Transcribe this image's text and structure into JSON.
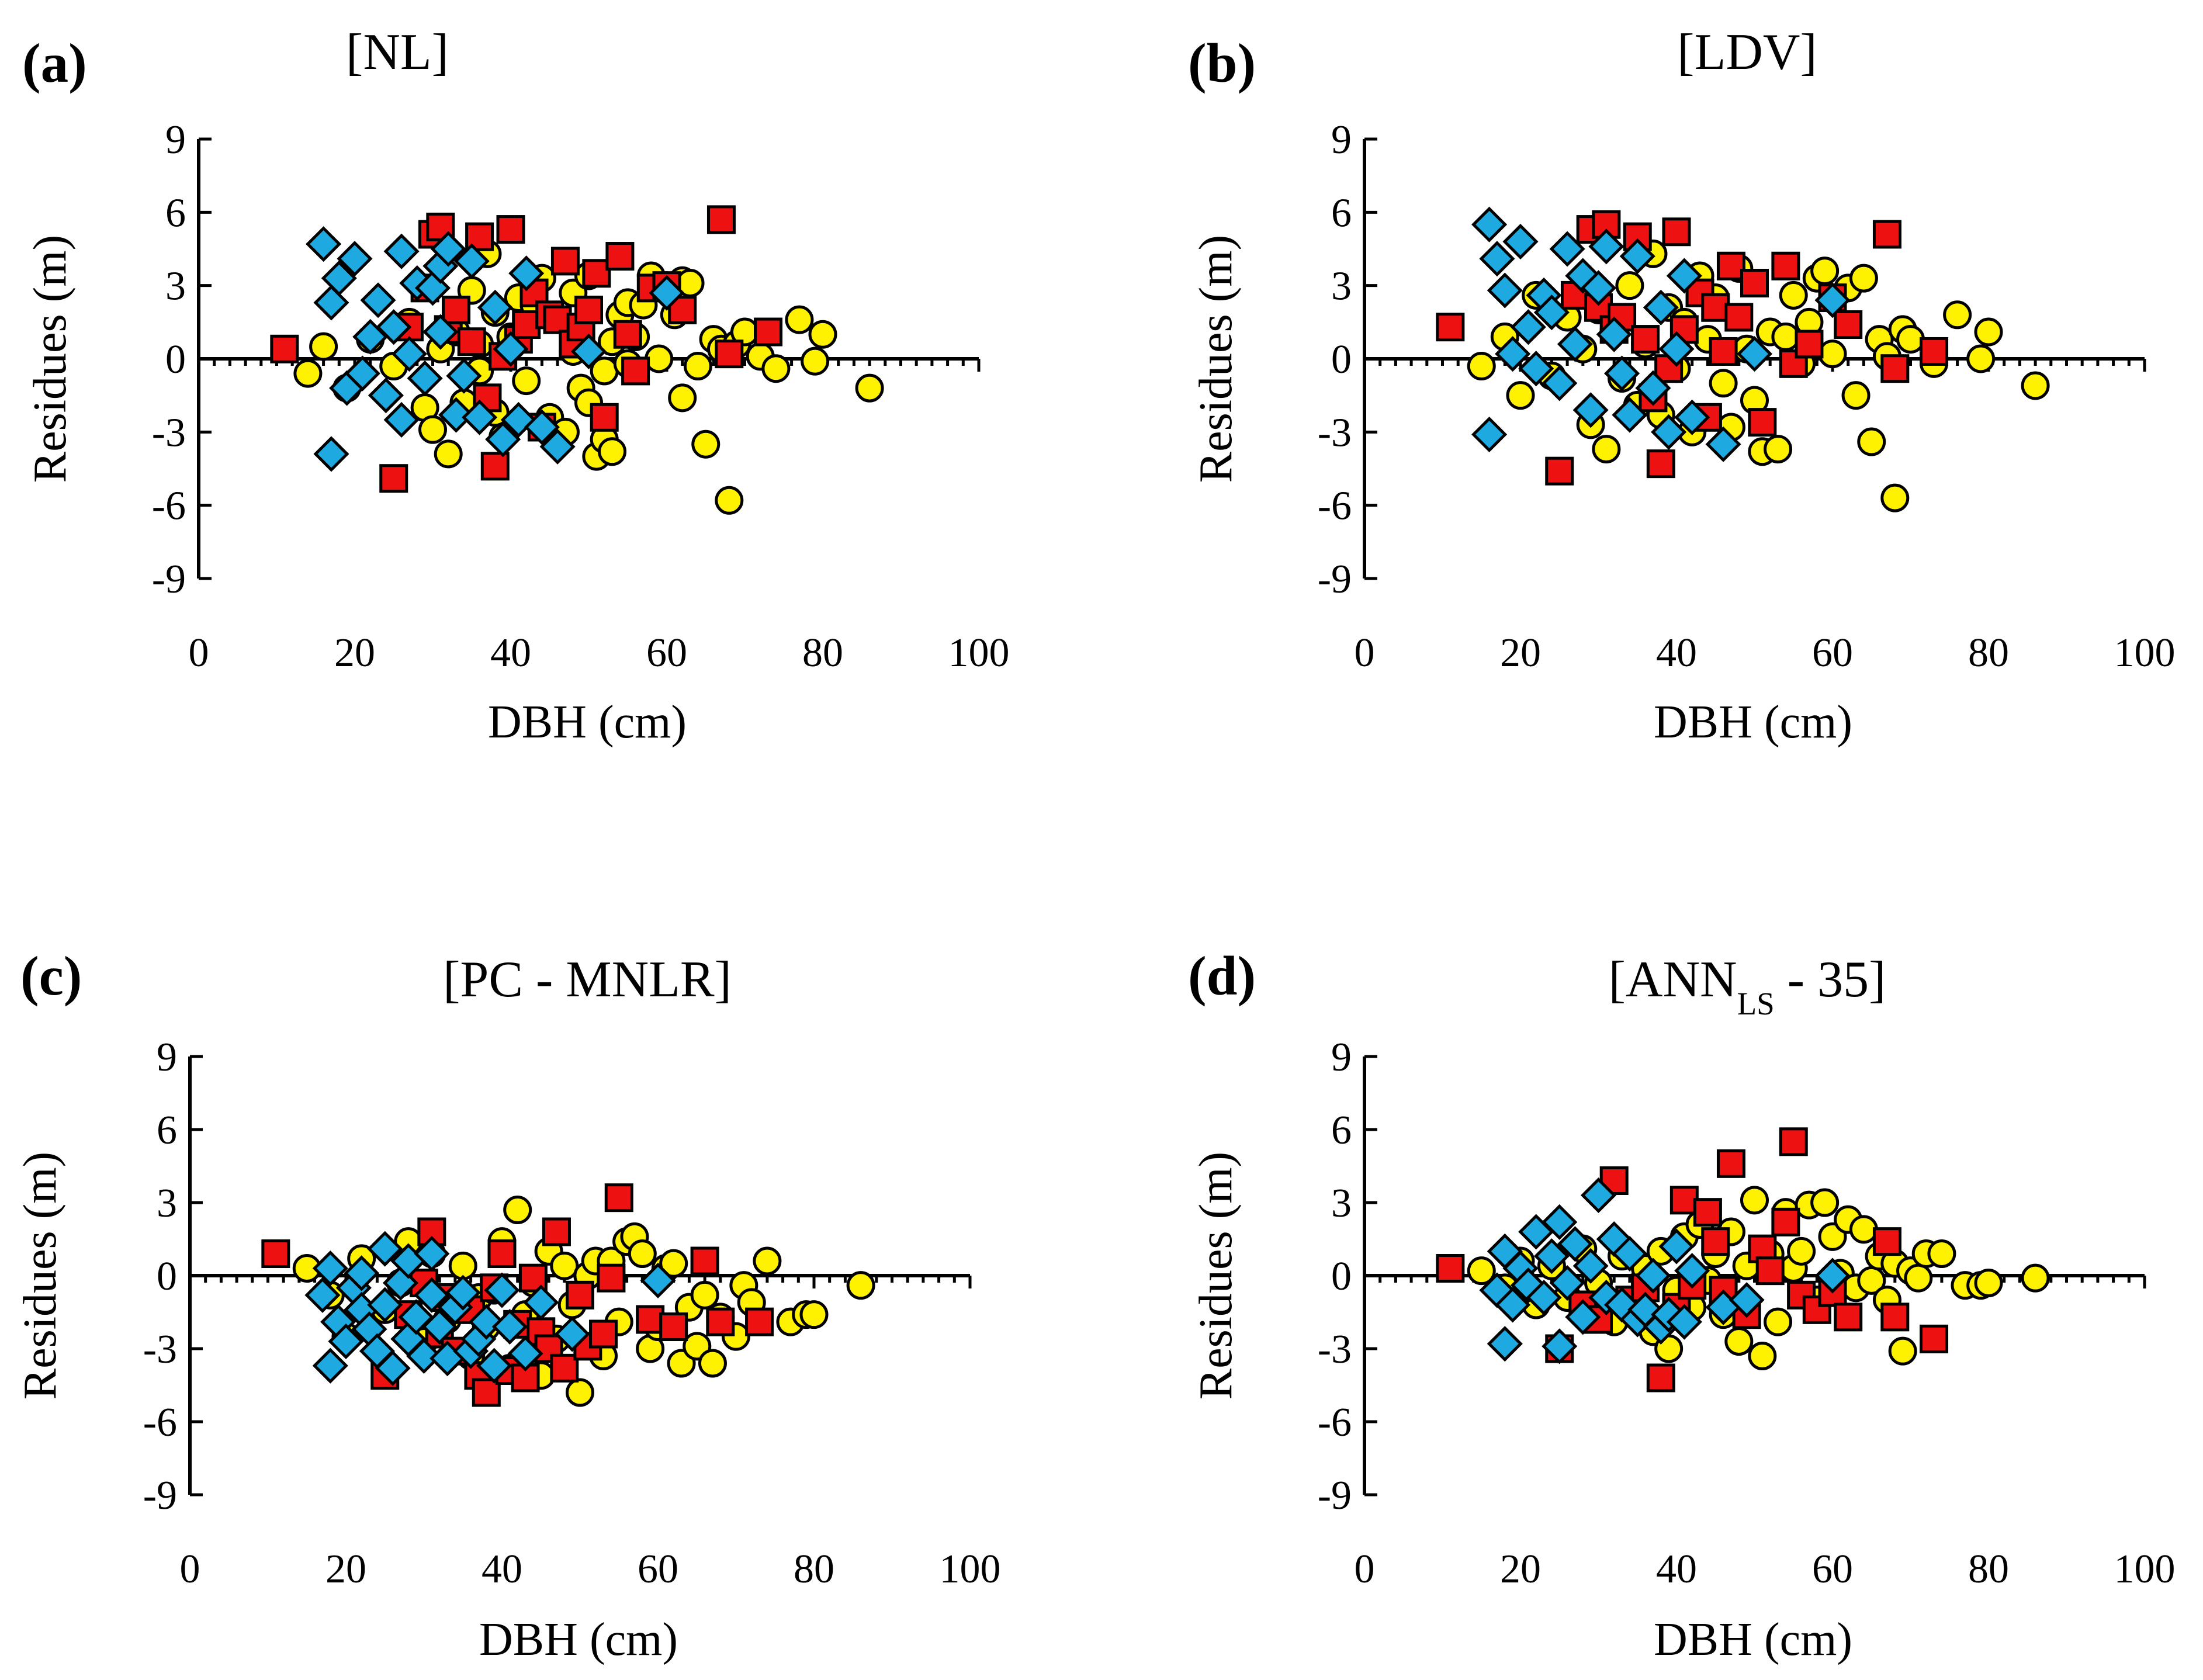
{
  "colors": {
    "series_circle": "#FFF200",
    "series_square": "#EE1111",
    "series_diamond": "#1EAAE0",
    "outline": "#000000"
  },
  "chart_data": [
    {
      "type": "scatter",
      "panel_label": "(a)",
      "title": "[NL]",
      "title_sub": "",
      "title_suffix": "",
      "xlabel": "DBH (cm)",
      "ylabel": "Residues (m)",
      "xlim": [
        0,
        100
      ],
      "ylim": [
        -9,
        9
      ],
      "xticks": [
        0,
        20,
        40,
        60,
        80,
        100
      ],
      "yticks": [
        9,
        6,
        3,
        0,
        -3,
        -6,
        -9
      ],
      "grid": false,
      "series": [
        {
          "name": "circle",
          "marker": "circle",
          "x": [
            14,
            16,
            19,
            22,
            25,
            27,
            29,
            30,
            31,
            32,
            33,
            34,
            35,
            36,
            36,
            37,
            38,
            38,
            39,
            40,
            41,
            42,
            43,
            44,
            45,
            46,
            47,
            48,
            48,
            49,
            50,
            50,
            51,
            52,
            52,
            53,
            53,
            54,
            55,
            55,
            56,
            57,
            58,
            59,
            60,
            61,
            62,
            62,
            63,
            64,
            65,
            66,
            67,
            68,
            69,
            70,
            72,
            74,
            77,
            79,
            80,
            86
          ],
          "y": [
            -0.6,
            0.5,
            -1.2,
            0.8,
            -0.3,
            1.5,
            -2.0,
            -2.9,
            0.4,
            -3.9,
            1.1,
            -1.8,
            2.8,
            0.6,
            -0.5,
            4.3,
            1.9,
            -2.2,
            -3.2,
            0.9,
            2.5,
            -0.9,
            2.2,
            3.3,
            -2.4,
            1.6,
            -3.0,
            0.3,
            2.7,
            -1.2,
            -1.8,
            3.4,
            -4.0,
            -0.5,
            -3.3,
            0.7,
            -3.8,
            1.8,
            2.3,
            -0.2,
            0.9,
            2.2,
            3.4,
            0.0,
            3.0,
            1.8,
            3.2,
            -1.6,
            3.1,
            -0.3,
            -3.5,
            0.8,
            0.4,
            -5.8,
            0.6,
            1.1,
            0.1,
            -0.4,
            1.6,
            -0.1,
            1.0,
            -1.2
          ]
        },
        {
          "name": "square",
          "marker": "square",
          "x": [
            11,
            25,
            27,
            29,
            30,
            31,
            32,
            33,
            35,
            36,
            37,
            38,
            39,
            40,
            41,
            42,
            43,
            44,
            45,
            46,
            47,
            48,
            49,
            50,
            51,
            52,
            54,
            55,
            56,
            58,
            60,
            62,
            67,
            68,
            73
          ],
          "y": [
            0.4,
            -4.9,
            1.3,
            2.9,
            5.1,
            5.4,
            1.2,
            2.0,
            0.7,
            5.0,
            -1.6,
            -4.4,
            0.1,
            5.3,
            0.8,
            1.4,
            2.7,
            -2.8,
            1.8,
            1.6,
            4.0,
            0.6,
            1.3,
            2.0,
            3.5,
            -2.4,
            4.2,
            1.0,
            -0.5,
            2.9,
            3.0,
            2.0,
            5.7,
            0.2,
            1.1
          ]
        },
        {
          "name": "diamond",
          "marker": "diamond",
          "x": [
            16,
            17,
            17,
            18,
            19,
            20,
            21,
            22,
            23,
            24,
            25,
            26,
            26,
            27,
            28,
            29,
            30,
            31,
            31,
            32,
            33,
            34,
            35,
            36,
            38,
            39,
            40,
            41,
            42,
            44,
            46,
            50,
            60
          ],
          "y": [
            4.7,
            -3.9,
            2.3,
            3.3,
            -1.2,
            4.1,
            -0.6,
            0.9,
            2.4,
            -1.5,
            1.3,
            4.4,
            -2.5,
            0.2,
            3.1,
            -0.8,
            2.9,
            1.1,
            3.8,
            4.5,
            -2.3,
            -0.7,
            4.0,
            -2.4,
            2.1,
            -3.3,
            0.4,
            -2.5,
            3.5,
            -2.8,
            -3.6,
            0.3,
            2.7
          ]
        }
      ]
    },
    {
      "type": "scatter",
      "panel_label": "(b)",
      "title": "[LDV]",
      "title_sub": "",
      "title_suffix": "",
      "xlabel": "DBH (cm)",
      "ylabel": "Residues (m)",
      "xlim": [
        0,
        100
      ],
      "ylim": [
        -9,
        9
      ],
      "xticks": [
        0,
        20,
        40,
        60,
        80,
        100
      ],
      "yticks": [
        9,
        6,
        3,
        0,
        -3,
        -6,
        -9
      ],
      "grid": false,
      "series": [
        {
          "name": "circle",
          "marker": "circle",
          "x": [
            15,
            18,
            20,
            22,
            24,
            26,
            28,
            29,
            30,
            31,
            32,
            33,
            34,
            35,
            36,
            37,
            38,
            39,
            40,
            41,
            42,
            43,
            44,
            45,
            46,
            47,
            48,
            49,
            50,
            51,
            52,
            53,
            54,
            55,
            56,
            57,
            58,
            59,
            60,
            62,
            63,
            64,
            65,
            66,
            67,
            68,
            69,
            70,
            73,
            76,
            79,
            80,
            86
          ],
          "y": [
            -0.3,
            0.9,
            -1.5,
            2.6,
            -0.7,
            1.7,
            0.4,
            -2.7,
            2.0,
            -3.7,
            1.2,
            -0.8,
            3.0,
            -1.9,
            0.6,
            4.3,
            -2.3,
            2.1,
            -0.4,
            1.5,
            -3.0,
            3.4,
            0.8,
            2.5,
            -1.0,
            -2.8,
            3.7,
            0.4,
            -1.7,
            -3.8,
            1.1,
            -3.7,
            0.9,
            2.6,
            -0.2,
            1.5,
            3.3,
            3.6,
            0.2,
            2.9,
            -1.5,
            3.3,
            -3.4,
            0.8,
            0.1,
            -5.7,
            1.2,
            0.8,
            -0.2,
            1.8,
            0.0,
            1.1,
            -1.1
          ]
        },
        {
          "name": "square",
          "marker": "square",
          "x": [
            11,
            25,
            27,
            29,
            30,
            31,
            32,
            33,
            35,
            36,
            37,
            38,
            39,
            40,
            41,
            43,
            44,
            45,
            46,
            47,
            48,
            50,
            51,
            54,
            55,
            57,
            60,
            62,
            67,
            68,
            73
          ],
          "y": [
            1.3,
            -4.6,
            2.6,
            5.3,
            2.1,
            5.5,
            1.2,
            1.7,
            5.0,
            0.8,
            -1.6,
            -4.3,
            -0.4,
            5.2,
            1.2,
            2.7,
            -2.4,
            2.1,
            0.3,
            3.8,
            1.7,
            3.1,
            -2.6,
            3.8,
            -0.2,
            0.6,
            2.5,
            1.4,
            5.1,
            -0.4,
            0.3
          ]
        },
        {
          "name": "diamond",
          "marker": "diamond",
          "x": [
            16,
            16,
            17,
            18,
            19,
            20,
            21,
            22,
            23,
            24,
            25,
            26,
            27,
            28,
            29,
            30,
            31,
            32,
            33,
            34,
            35,
            37,
            38,
            39,
            40,
            41,
            42,
            46,
            50,
            60
          ],
          "y": [
            5.5,
            -3.1,
            4.1,
            2.8,
            0.2,
            4.8,
            1.3,
            -0.4,
            2.6,
            1.9,
            -1.0,
            4.5,
            0.6,
            3.4,
            -2.1,
            2.9,
            4.6,
            1.0,
            -0.6,
            -2.3,
            4.2,
            -1.2,
            2.1,
            -3.0,
            0.4,
            3.4,
            -2.4,
            -3.5,
            0.2,
            2.4
          ]
        }
      ]
    },
    {
      "type": "scatter",
      "panel_label": "(c)",
      "title": "[PC - MNLR]",
      "title_sub": "",
      "title_suffix": "",
      "xlabel": "DBH (cm)",
      "ylabel": "Residues (m)",
      "xlim": [
        0,
        100
      ],
      "ylim": [
        -9,
        9
      ],
      "xticks": [
        0,
        20,
        40,
        60,
        80,
        100
      ],
      "yticks": [
        9,
        6,
        3,
        0,
        -3,
        -6,
        -9
      ],
      "grid": false,
      "series": [
        {
          "name": "circle",
          "marker": "circle",
          "x": [
            15,
            18,
            20,
            22,
            25,
            27,
            28,
            30,
            31,
            33,
            35,
            36,
            37,
            38,
            39,
            40,
            41,
            42,
            43,
            44,
            45,
            46,
            47,
            48,
            49,
            50,
            51,
            52,
            53,
            54,
            55,
            56,
            57,
            58,
            59,
            60,
            61,
            62,
            63,
            64,
            65,
            66,
            67,
            68,
            70,
            71,
            72,
            74,
            77,
            79,
            80,
            86
          ],
          "y": [
            0.3,
            -0.8,
            -2.5,
            0.7,
            -1.4,
            -0.3,
            1.4,
            -2.7,
            0.9,
            -1.8,
            0.4,
            -3.3,
            -0.9,
            -2.1,
            -0.6,
            1.4,
            -3.8,
            2.7,
            -1.6,
            -0.3,
            -4.1,
            1.0,
            -2.6,
            0.4,
            -1.2,
            -4.8,
            0.0,
            0.6,
            -3.3,
            0.6,
            -1.9,
            1.4,
            1.6,
            0.9,
            -3.0,
            -2.1,
            0.3,
            0.5,
            -3.6,
            -1.3,
            -2.9,
            -0.8,
            -3.6,
            -1.7,
            -2.5,
            -0.4,
            -1.1,
            0.6,
            -1.9,
            -1.6,
            -1.6,
            -0.4
          ]
        },
        {
          "name": "square",
          "marker": "square",
          "x": [
            11,
            25,
            28,
            30,
            31,
            32,
            33,
            34,
            36,
            37,
            38,
            39,
            40,
            41,
            42,
            43,
            44,
            45,
            46,
            47,
            48,
            50,
            51,
            53,
            54,
            55,
            59,
            62,
            66,
            68,
            73
          ],
          "y": [
            0.9,
            -4.1,
            -1.6,
            -0.3,
            1.8,
            -2.4,
            -0.9,
            -3.1,
            -1.4,
            -4.1,
            -4.8,
            -0.5,
            0.9,
            -3.9,
            -2.0,
            -4.2,
            -0.1,
            -2.3,
            -3.0,
            1.8,
            -3.8,
            -0.8,
            -2.9,
            -2.4,
            -0.1,
            3.2,
            -1.8,
            -2.1,
            0.6,
            -1.9,
            -1.9
          ]
        },
        {
          "name": "diamond",
          "marker": "diamond",
          "x": [
            17,
            18,
            18,
            19,
            20,
            21,
            22,
            22,
            23,
            24,
            25,
            25,
            26,
            27,
            28,
            28,
            29,
            30,
            31,
            31,
            32,
            33,
            34,
            35,
            36,
            37,
            38,
            39,
            40,
            41,
            43,
            45,
            49,
            60
          ],
          "y": [
            -0.8,
            -3.7,
            0.3,
            -1.9,
            -2.7,
            -0.5,
            -1.4,
            0.1,
            -2.2,
            -3.1,
            -1.2,
            1.1,
            -3.8,
            -0.3,
            -2.6,
            0.6,
            -1.7,
            -3.3,
            0.9,
            -0.8,
            -2.1,
            -3.4,
            -1.3,
            -0.7,
            -3.1,
            -2.6,
            -1.9,
            -3.7,
            -0.6,
            -2.1,
            -3.2,
            -1.1,
            -2.4,
            -0.2
          ]
        }
      ]
    },
    {
      "type": "scatter",
      "panel_label": "(d)",
      "title": "[ANN",
      "title_sub": "LS",
      "title_suffix": " - 35]",
      "xlabel": "DBH (cm)",
      "ylabel": "Residues (m)",
      "xlim": [
        0,
        100
      ],
      "ylim": [
        -9,
        9
      ],
      "xticks": [
        0,
        20,
        40,
        60,
        80,
        100
      ],
      "yticks": [
        9,
        6,
        3,
        0,
        -3,
        -6,
        -9
      ],
      "grid": false,
      "series": [
        {
          "name": "circle",
          "marker": "circle",
          "x": [
            15,
            18,
            20,
            22,
            24,
            26,
            28,
            30,
            32,
            33,
            35,
            36,
            37,
            38,
            39,
            40,
            41,
            42,
            43,
            44,
            45,
            46,
            47,
            48,
            49,
            50,
            51,
            52,
            53,
            54,
            55,
            56,
            57,
            58,
            59,
            60,
            61,
            62,
            63,
            64,
            65,
            66,
            67,
            68,
            69,
            70,
            71,
            72,
            74,
            77,
            79,
            80,
            86
          ],
          "y": [
            0.2,
            -0.5,
            0.6,
            -1.2,
            0.4,
            -0.9,
            1.1,
            -0.3,
            -1.9,
            0.8,
            -1.1,
            0.3,
            -2.3,
            1.0,
            -3.0,
            -0.6,
            1.6,
            -1.3,
            2.1,
            -0.2,
            0.9,
            -1.6,
            1.8,
            -2.7,
            0.4,
            3.1,
            -3.3,
            0.9,
            -1.9,
            2.6,
            0.3,
            1.0,
            2.9,
            -1.0,
            3.0,
            1.6,
            0.1,
            2.3,
            -0.5,
            1.9,
            -0.2,
            0.8,
            -1.0,
            0.5,
            -3.1,
            0.2,
            -0.1,
            0.9,
            0.9,
            -0.4,
            -0.4,
            -0.3,
            -0.1
          ]
        },
        {
          "name": "square",
          "marker": "square",
          "x": [
            11,
            25,
            28,
            30,
            32,
            34,
            36,
            38,
            40,
            41,
            42,
            44,
            45,
            46,
            47,
            49,
            51,
            52,
            54,
            55,
            56,
            58,
            60,
            62,
            67,
            68,
            73
          ],
          "y": [
            0.3,
            -3.0,
            -1.2,
            -1.8,
            3.9,
            -1.0,
            -0.5,
            -4.2,
            -1.3,
            3.1,
            -0.4,
            2.6,
            1.4,
            -0.6,
            4.6,
            -1.6,
            1.1,
            0.2,
            2.2,
            5.5,
            -0.8,
            -1.4,
            -0.7,
            -1.7,
            1.4,
            -1.7,
            -2.6
          ]
        },
        {
          "name": "diamond",
          "marker": "diamond",
          "x": [
            17,
            18,
            18,
            19,
            20,
            21,
            22,
            23,
            24,
            25,
            25,
            26,
            27,
            28,
            29,
            30,
            31,
            32,
            33,
            34,
            35,
            36,
            37,
            38,
            39,
            40,
            41,
            42,
            46,
            49,
            60
          ],
          "y": [
            -0.6,
            -2.8,
            1.0,
            -1.2,
            0.3,
            -0.4,
            1.8,
            -0.9,
            0.8,
            -2.9,
            2.2,
            -0.3,
            1.3,
            -1.7,
            0.4,
            3.3,
            -0.9,
            1.5,
            -1.2,
            0.9,
            -1.8,
            -1.4,
            0.0,
            -2.1,
            -1.6,
            1.2,
            -1.9,
            0.2,
            -1.3,
            -1.0,
            0.0
          ]
        }
      ]
    }
  ]
}
